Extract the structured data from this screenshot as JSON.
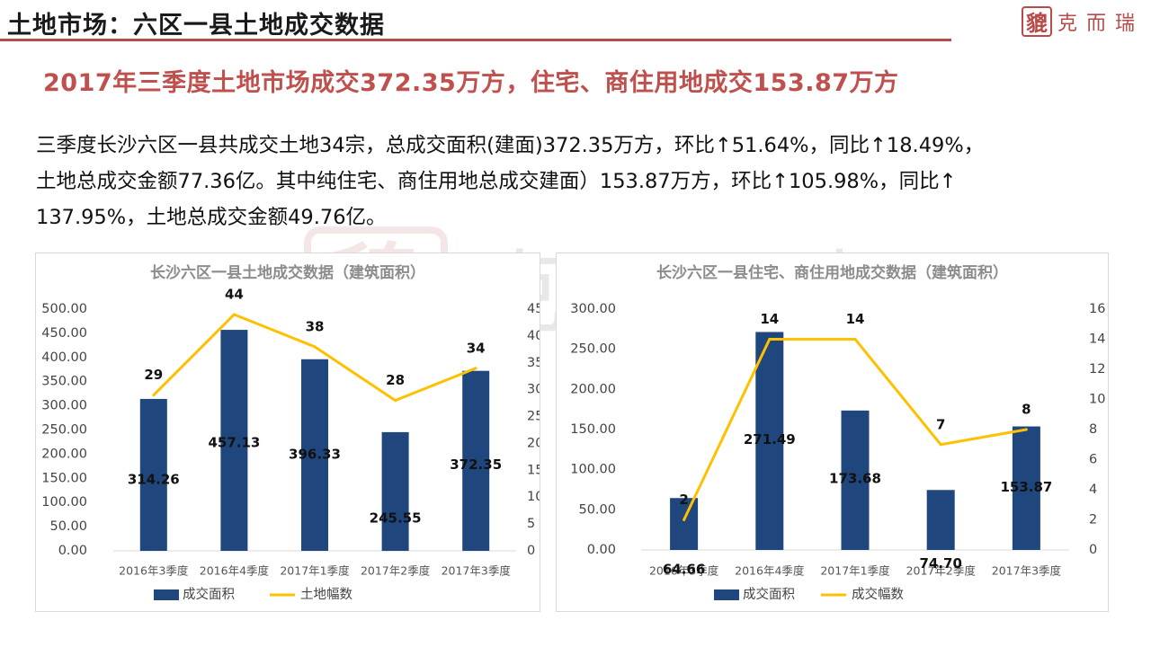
{
  "header": {
    "title": "土地市场：六区一县土地成交数据",
    "logo_mark": "貔",
    "logo_text": "克而瑞",
    "accent_color": "#b94a4a"
  },
  "headline": "2017年三季度土地市场成交372.35万方，住宅、商住用地成交153.87万方",
  "summary": {
    "line1": "三季度长沙六区一县共成交土地34宗，总成交面积(建面)372.35万方，环比↑51.64%，同比↑18.49%，",
    "line2": "土地总成交金额77.36亿。其中纯住宅、商住用地总成交建面）153.87万方，环比↑105.98%，同比↑",
    "line3": "137.95%，土地总成交金额49.76亿。"
  },
  "chart_data": [
    {
      "type": "bar",
      "title": "长沙六区一县土地成交数据（建筑面积）",
      "categories": [
        "2016年3季度",
        "2016年4季度",
        "2017年1季度",
        "2017年2季度",
        "2017年3季度"
      ],
      "series": [
        {
          "name": "成交面积",
          "type": "bar",
          "axis": "left",
          "color": "#1f477d",
          "values": [
            314.26,
            457.13,
            396.33,
            245.55,
            372.35
          ]
        },
        {
          "name": "土地幅数",
          "type": "line",
          "axis": "right",
          "color": "#ffc000",
          "values": [
            29,
            44,
            38,
            28,
            34
          ]
        }
      ],
      "left_axis": {
        "min": 0,
        "max": 500,
        "step": 50,
        "decimals": 2
      },
      "right_axis": {
        "min": 0,
        "max": 45,
        "step": 5,
        "decimals": 0
      },
      "grid": false,
      "legend": "bottom"
    },
    {
      "type": "bar",
      "title": "长沙六区一县住宅、商住用地成交数据（建筑面积）",
      "categories": [
        "2016年3季度",
        "2016年4季度",
        "2017年1季度",
        "2017年2季度",
        "2017年3季度"
      ],
      "series": [
        {
          "name": "成交面积",
          "type": "bar",
          "axis": "left",
          "color": "#1f477d",
          "values": [
            64.66,
            271.49,
            173.68,
            74.7,
            153.87
          ]
        },
        {
          "name": "成交幅数",
          "type": "line",
          "axis": "right",
          "color": "#ffc000",
          "values": [
            2,
            14,
            14,
            7,
            8
          ]
        }
      ],
      "left_axis": {
        "min": 0,
        "max": 300,
        "step": 50,
        "decimals": 2
      },
      "right_axis": {
        "min": 0,
        "max": 16,
        "step": 2,
        "decimals": 0
      },
      "grid": false,
      "legend": "bottom"
    }
  ]
}
